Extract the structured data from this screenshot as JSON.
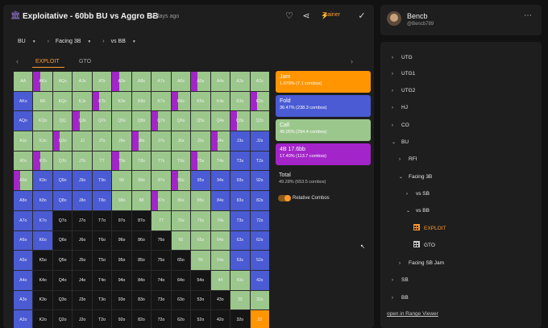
{
  "header": {
    "title": "Exploitative - 60bb BU vs Aggro BB",
    "age": "17 days ago",
    "trainer_label": "Trainer"
  },
  "filters": {
    "position": "BU",
    "scenario": "Facing 3B",
    "opponent": "vs BB"
  },
  "tabs": {
    "exploit": "EXPLOIT",
    "gto": "GTO"
  },
  "colors": {
    "jam": "#ff9500",
    "fold": "#4a5bd4",
    "call": "#9cc78c",
    "bet": "#a325c9",
    "empty": "#151515",
    "accent": "#ff9a2e"
  },
  "grid": {
    "rows": [
      [
        "AA",
        "AKs",
        "AQs",
        "AJs",
        "ATs",
        "A9s",
        "A8s",
        "A7s",
        "A6s",
        "A5s",
        "A4s",
        "A3s",
        "A2s"
      ],
      [
        "AKo",
        "KK",
        "KQs",
        "KJs",
        "KTs",
        "K9s",
        "K8s",
        "K7s",
        "K6s",
        "K5s",
        "K4s",
        "K3s",
        "K2s"
      ],
      [
        "AQo",
        "KQo",
        "QQ",
        "QJs",
        "QTs",
        "Q9s",
        "Q8s",
        "Q7s",
        "Q6s",
        "Q5s",
        "Q4s",
        "Q3s",
        "Q2s"
      ],
      [
        "AJo",
        "KJo",
        "QJo",
        "JJ",
        "JTs",
        "J9s",
        "J8s",
        "J7s",
        "J6s",
        "J5s",
        "J4s",
        "J3s",
        "J2s"
      ],
      [
        "ATo",
        "KTo",
        "QTo",
        "JTo",
        "TT",
        "T9s",
        "T8s",
        "T7s",
        "T6s",
        "T5s",
        "T4s",
        "T3s",
        "T2s"
      ],
      [
        "A9o",
        "K9o",
        "Q9o",
        "J9o",
        "T9o",
        "99",
        "98s",
        "97s",
        "96s",
        "95s",
        "94s",
        "93s",
        "92s"
      ],
      [
        "A8o",
        "K8o",
        "Q8o",
        "J8o",
        "T8o",
        "98o",
        "88",
        "87s",
        "86s",
        "85s",
        "84s",
        "83s",
        "82s"
      ],
      [
        "A7o",
        "K7o",
        "Q7o",
        "J7o",
        "T7o",
        "97o",
        "87o",
        "77",
        "76s",
        "75s",
        "74s",
        "73s",
        "72s"
      ],
      [
        "A6o",
        "K6o",
        "Q6o",
        "J6o",
        "T6o",
        "96o",
        "86o",
        "76o",
        "66",
        "65s",
        "64s",
        "63s",
        "62s"
      ],
      [
        "A5o",
        "K5o",
        "Q5o",
        "J5o",
        "T5o",
        "95o",
        "85o",
        "75o",
        "65o",
        "55",
        "54s",
        "53s",
        "52s"
      ],
      [
        "A4o",
        "K4o",
        "Q4o",
        "J4o",
        "T4o",
        "94o",
        "84o",
        "74o",
        "64o",
        "54o",
        "44",
        "43s",
        "42s"
      ],
      [
        "A3o",
        "K3o",
        "Q3o",
        "J3o",
        "T3o",
        "93o",
        "83o",
        "73o",
        "63o",
        "53o",
        "43o",
        "33",
        "32s"
      ],
      [
        "A2o",
        "K2o",
        "Q2o",
        "J2o",
        "T2o",
        "92o",
        "82o",
        "72o",
        "62o",
        "52o",
        "42o",
        "32o",
        "22"
      ]
    ],
    "actions": [
      [
        "C",
        "C",
        "C",
        "C",
        "C",
        "C",
        "C",
        "C",
        "C",
        "C",
        "C",
        "C",
        "C"
      ],
      [
        "F",
        "C",
        "C",
        "C",
        "C",
        "C",
        "C",
        "C",
        "C",
        "C",
        "C",
        "C",
        "C"
      ],
      [
        "F",
        "C",
        "C",
        "C",
        "C",
        "C",
        "C",
        "C",
        "C",
        "C",
        "C",
        "C",
        "C"
      ],
      [
        "C",
        "C",
        "C",
        "C",
        "C",
        "C",
        "C",
        "C",
        "C",
        "C",
        "C",
        "F",
        "F"
      ],
      [
        "C",
        "C",
        "C",
        "C",
        "C",
        "C",
        "C",
        "C",
        "C",
        "C",
        "C",
        "F",
        "F"
      ],
      [
        "C",
        "F",
        "F",
        "F",
        "F",
        "C",
        "C",
        "C",
        "C",
        "F",
        "F",
        "F",
        "F"
      ],
      [
        "F",
        "F",
        "F",
        "F",
        "F",
        "C",
        "C",
        "C",
        "C",
        "C",
        "F",
        "F",
        "F"
      ],
      [
        "F",
        "F",
        "E",
        "E",
        "E",
        "E",
        "E",
        "C",
        "C",
        "C",
        "C",
        "F",
        "F"
      ],
      [
        "F",
        "F",
        "E",
        "E",
        "E",
        "E",
        "E",
        "E",
        "C",
        "C",
        "C",
        "F",
        "F"
      ],
      [
        "F",
        "E",
        "E",
        "E",
        "E",
        "E",
        "E",
        "E",
        "E",
        "C",
        "C",
        "F",
        "F"
      ],
      [
        "F",
        "E",
        "E",
        "E",
        "E",
        "E",
        "E",
        "E",
        "E",
        "E",
        "C",
        "C",
        "F"
      ],
      [
        "F",
        "E",
        "E",
        "E",
        "E",
        "E",
        "E",
        "E",
        "E",
        "E",
        "E",
        "C",
        "C"
      ],
      [
        "F",
        "E",
        "E",
        "E",
        "E",
        "E",
        "E",
        "E",
        "E",
        "E",
        "E",
        "E",
        "J"
      ]
    ]
  },
  "legend": [
    {
      "name": "Jam",
      "value": "1.079% (7.1 combos)",
      "color": "#ff9500"
    },
    {
      "name": "Fold",
      "value": "36.47% (238.3 combos)",
      "color": "#4a5bd4"
    },
    {
      "name": "Call",
      "value": "45.05% (294.4 combos)",
      "color": "#9cc78c"
    },
    {
      "name": "4B 17.6bb",
      "value": "17.40% (113.7 combos)",
      "color": "#a325c9"
    }
  ],
  "total": {
    "label": "Total",
    "value": "49.28% (653.5 combos)"
  },
  "relative_combos_label": "Relative Combos",
  "user": {
    "name": "Bencb",
    "handle": "@Bencb789"
  },
  "tree": [
    {
      "label": "UTG",
      "indent": 0,
      "chev": "›",
      "icon": ""
    },
    {
      "label": "UTG1",
      "indent": 0,
      "chev": "›",
      "icon": ""
    },
    {
      "label": "UTG2",
      "indent": 0,
      "chev": "›",
      "icon": ""
    },
    {
      "label": "HJ",
      "indent": 0,
      "chev": "›",
      "icon": ""
    },
    {
      "label": "CO",
      "indent": 0,
      "chev": "›",
      "icon": ""
    },
    {
      "label": "BU",
      "indent": 0,
      "chev": "⌄",
      "icon": ""
    },
    {
      "label": "RFI",
      "indent": 1,
      "chev": "›",
      "icon": ""
    },
    {
      "label": "Facing 3B",
      "indent": 1,
      "chev": "⌄",
      "icon": ""
    },
    {
      "label": "vs SB",
      "indent": 2,
      "chev": "›",
      "icon": ""
    },
    {
      "label": "vs BB",
      "indent": 2,
      "chev": "⌄",
      "icon": ""
    },
    {
      "label": "EXPLOIT",
      "indent": 3,
      "chev": "",
      "icon": "grid-orange"
    },
    {
      "label": "GTO",
      "indent": 3,
      "chev": "",
      "icon": "grid"
    },
    {
      "label": "Facing SB Jam",
      "indent": 1,
      "chev": "›",
      "icon": ""
    },
    {
      "label": "SB",
      "indent": 0,
      "chev": "›",
      "icon": ""
    },
    {
      "label": "BB",
      "indent": 0,
      "chev": "›",
      "icon": ""
    }
  ],
  "open_link": "open in Range Viewer"
}
